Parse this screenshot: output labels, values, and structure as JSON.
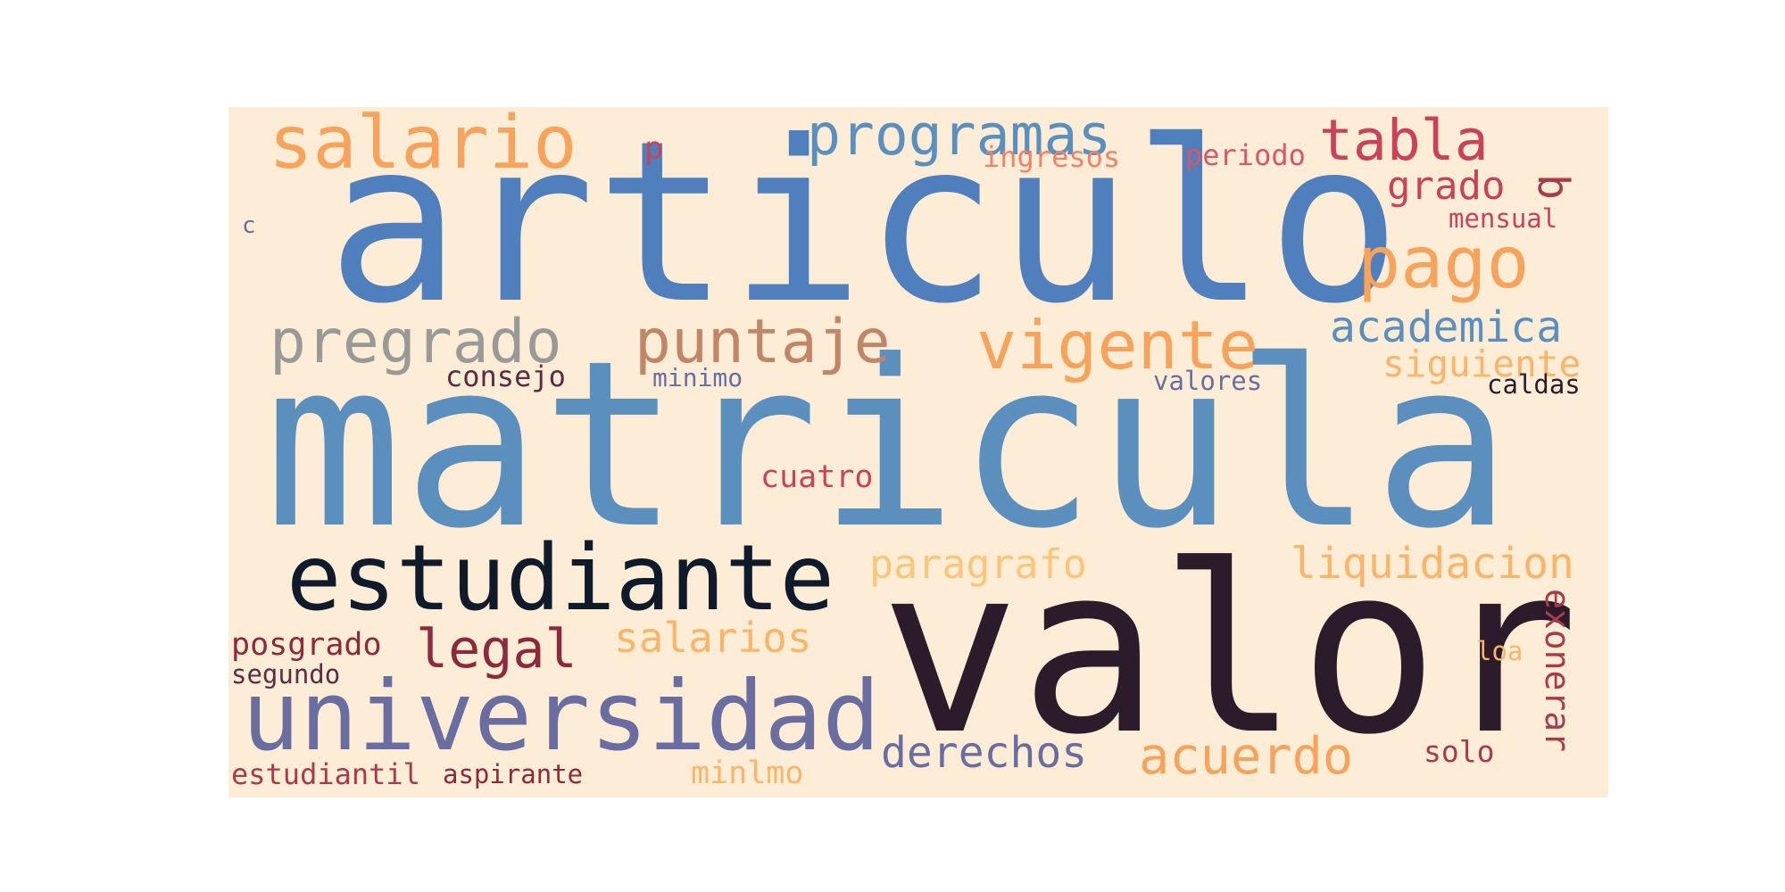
{
  "background_color": "#feedd6",
  "palette": [
    "#4f7fbc",
    "#5b8fbd",
    "#2c1b2b",
    "#0f1b2a",
    "#6a6da0",
    "#f7a35c",
    "#fbb56b",
    "#c9425a",
    "#a83a4b",
    "#8c2a3b",
    "#999a98",
    "#c08667"
  ],
  "words": [
    {
      "text": "articulo",
      "color": "#4f7fbc"
    },
    {
      "text": "matricula",
      "color": "#5b8fbd"
    },
    {
      "text": "valor",
      "color": "#2c1b2b"
    },
    {
      "text": "estudiante",
      "color": "#0f1b2a"
    },
    {
      "text": "universidad",
      "color": "#6a6da0"
    },
    {
      "text": "salario",
      "color": "#f7a35c"
    },
    {
      "text": "programas",
      "color": "#5b8fbd"
    },
    {
      "text": "tabla",
      "color": "#c9425a"
    },
    {
      "text": "pago",
      "color": "#f7a35c"
    },
    {
      "text": "pregrado",
      "color": "#999a98"
    },
    {
      "text": "puntaje",
      "color": "#c08667"
    },
    {
      "text": "vigente",
      "color": "#f7a35c"
    },
    {
      "text": "academica",
      "color": "#5b8fbd"
    },
    {
      "text": "siguiente",
      "color": "#fbb56b"
    },
    {
      "text": "paragrafo",
      "color": "#fbc57a"
    },
    {
      "text": "liquidacion",
      "color": "#fbb56b"
    },
    {
      "text": "legal",
      "color": "#8c2a3b"
    },
    {
      "text": "salarios",
      "color": "#fbb56b"
    },
    {
      "text": "posgrado",
      "color": "#8c2a3b"
    },
    {
      "text": "derechos",
      "color": "#6a6da0"
    },
    {
      "text": "acuerdo",
      "color": "#f7a35c"
    },
    {
      "text": "exonerar",
      "color": "#a83a4b"
    },
    {
      "text": "ingresos",
      "color": "#f0826b"
    },
    {
      "text": "periodo",
      "color": "#d9556a"
    },
    {
      "text": "grado",
      "color": "#c9425a"
    },
    {
      "text": "mensual",
      "color": "#c9425a"
    },
    {
      "text": "b",
      "color": "#a83a4b"
    },
    {
      "text": "p",
      "color": "#c9425a"
    },
    {
      "text": "c",
      "color": "#6a6da0"
    },
    {
      "text": "consejo",
      "color": "#5c2b42"
    },
    {
      "text": "minimo",
      "color": "#6a6da0"
    },
    {
      "text": "valores",
      "color": "#6a6da0"
    },
    {
      "text": "caldas",
      "color": "#2c1b2b"
    },
    {
      "text": "cuatro",
      "color": "#c9425a"
    },
    {
      "text": "segundo",
      "color": "#5c2b42"
    },
    {
      "text": "loa",
      "color": "#fbb56b"
    },
    {
      "text": "solo",
      "color": "#a83a4b"
    },
    {
      "text": "estudiantil",
      "color": "#a83a4b"
    },
    {
      "text": "aspirante",
      "color": "#8c2a3b"
    },
    {
      "text": "minlmo",
      "color": "#fbb56b"
    }
  ]
}
